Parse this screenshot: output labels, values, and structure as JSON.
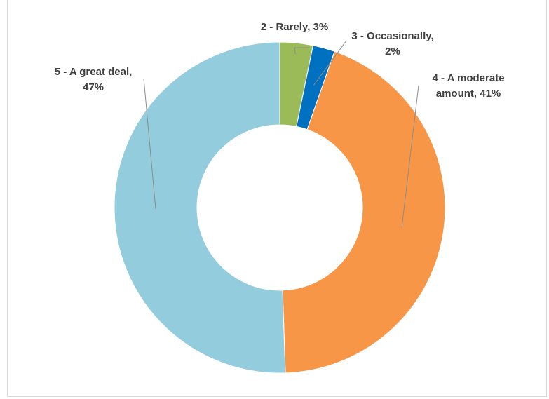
{
  "chart_data": {
    "type": "pie",
    "variant": "donut",
    "title": "",
    "slices": [
      {
        "name": "2 - Rarely",
        "value": 3,
        "color": "#9bbb59"
      },
      {
        "name": "3 - Occasionally",
        "value": 2,
        "color": "#0070c0"
      },
      {
        "name": "4 - A moderate amount",
        "value": 41,
        "color": "#f79646"
      },
      {
        "name": "5 - A great deal",
        "value": 47,
        "color": "#93cddd"
      }
    ],
    "labels": [
      {
        "lines": [
          "2 - Rarely, 3%"
        ]
      },
      {
        "lines": [
          "3 - Occasionally,",
          "2%"
        ]
      },
      {
        "lines": [
          "4 - A moderate",
          "amount, 41%"
        ]
      },
      {
        "lines": [
          "5 - A great deal,",
          "47%"
        ]
      }
    ],
    "legend": "none"
  }
}
